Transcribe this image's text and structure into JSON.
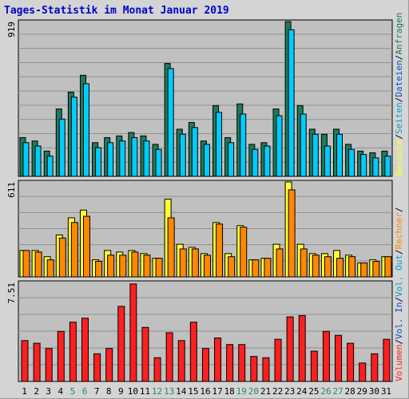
{
  "title": "Tages-Statistik im Monat Januar 2019",
  "colors": {
    "anfragen": "#1c7c5c",
    "dateien": "#00ccff",
    "seiten": "#00ccff",
    "besuche": "#ffff33",
    "rechner": "#ff8800",
    "volumen": "#ff1f1f",
    "weekend_label": "#2a8a5a",
    "weekday_label": "#000000",
    "panel_bg": "#c0c0c0",
    "frame_bg": "#d4d4d4"
  },
  "right_labels": {
    "anfragen": "Anfragen",
    "dateien": "Dateien",
    "seiten": "Seiten",
    "besuche": "Besuche",
    "rechner": "Rechner",
    "vol_out": "Vol. Out",
    "vol_in": "Vol. In",
    "volumen": "Volumen",
    "sep": "/"
  },
  "chart_data": {
    "type": "bar",
    "title": "Tages-Statistik im Monat Januar 2019",
    "categories": [
      "1",
      "2",
      "3",
      "4",
      "5",
      "6",
      "7",
      "8",
      "9",
      "10",
      "11",
      "12",
      "13",
      "14",
      "15",
      "16",
      "17",
      "18",
      "19",
      "20",
      "21",
      "22",
      "23",
      "24",
      "25",
      "26",
      "27",
      "28",
      "29",
      "30",
      "31"
    ],
    "weekend_days": [
      "5",
      "6",
      "12",
      "13",
      "19",
      "20",
      "26",
      "27"
    ],
    "panels": [
      {
        "id": "hits",
        "max_label": "919",
        "ylim": [
          0,
          919
        ],
        "series": [
          {
            "name": "Anfragen",
            "values": [
              230,
              210,
              150,
              400,
              500,
              600,
              200,
              230,
              240,
              260,
              240,
              190,
              670,
              280,
              320,
              210,
              420,
              230,
              430,
              190,
              200,
              400,
              919,
              420,
              280,
              250,
              280,
              190,
              150,
              140,
              150
            ]
          },
          {
            "name": "Dateien",
            "values": [
              200,
              180,
              120,
              340,
              470,
              550,
              170,
              200,
              210,
              230,
              210,
              160,
              640,
              250,
              290,
              190,
              380,
              200,
              370,
              160,
              180,
              360,
              870,
              370,
              250,
              180,
              250,
              160,
              130,
              110,
              120
            ]
          }
        ]
      },
      {
        "id": "visits",
        "max_label": "611",
        "ylim": [
          0,
          611
        ],
        "series": [
          {
            "name": "Seiten",
            "values": [
              170,
              170,
              130,
              270,
              380,
              430,
              110,
              170,
              160,
              170,
              150,
              120,
              500,
              210,
              190,
              150,
              350,
              150,
              330,
              110,
              120,
              210,
              611,
              210,
              150,
              150,
              170,
              140,
              90,
              110,
              130
            ]
          },
          {
            "name": "Besuche",
            "values": [
              170,
              170,
              130,
              270,
              380,
              430,
              110,
              170,
              160,
              170,
              150,
              120,
              500,
              210,
              190,
              150,
              350,
              150,
              330,
              110,
              120,
              210,
              611,
              210,
              150,
              150,
              170,
              140,
              90,
              110,
              130
            ]
          },
          {
            "name": "Rechner",
            "values": [
              170,
              160,
              110,
              250,
              350,
              390,
              100,
              140,
              140,
              160,
              140,
              120,
              380,
              180,
              180,
              140,
              340,
              130,
              320,
              110,
              120,
              180,
              560,
              180,
              140,
              130,
              120,
              130,
              90,
              100,
              130
            ]
          }
        ]
      },
      {
        "id": "volume",
        "max_label": "7.51",
        "ylim": [
          0,
          7.51
        ],
        "series": [
          {
            "name": "Volumen",
            "values": [
              3.1,
              2.9,
              2.5,
              3.8,
              4.5,
              4.8,
              2.1,
              2.5,
              5.7,
              7.4,
              4.1,
              1.8,
              3.7,
              3.1,
              4.5,
              2.5,
              3.3,
              2.8,
              2.8,
              1.9,
              1.8,
              3.2,
              4.9,
              5.0,
              2.3,
              3.8,
              3.5,
              2.9,
              1.4,
              2.1,
              3.2
            ]
          }
        ]
      }
    ]
  }
}
